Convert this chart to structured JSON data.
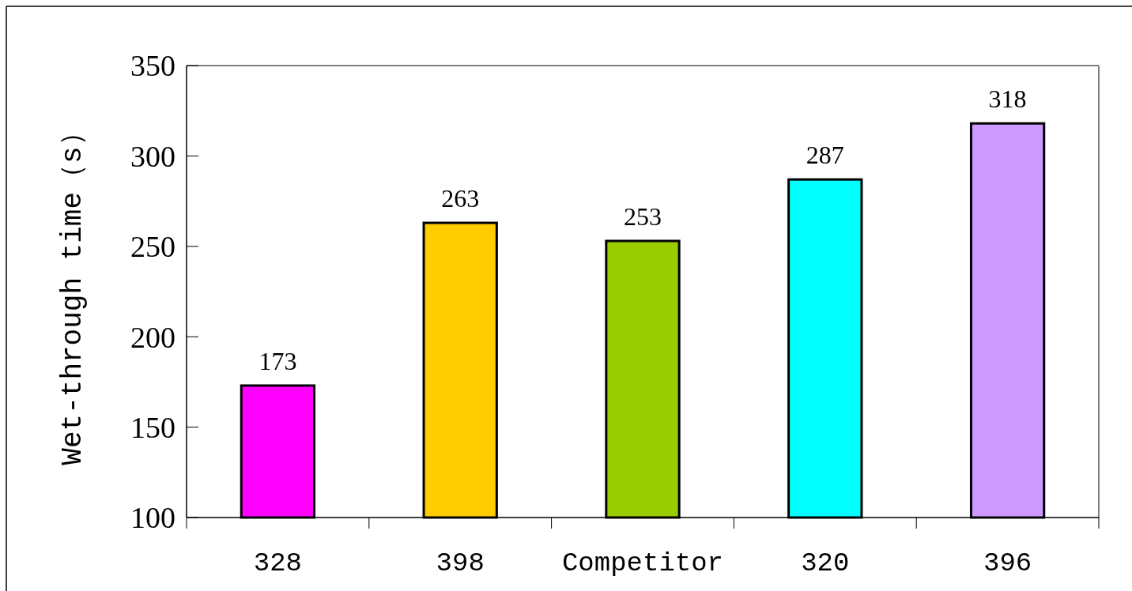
{
  "chart_data": {
    "type": "bar",
    "ylabel": "Wet-through time（s）",
    "categories": [
      "328",
      "398",
      "Competitor",
      "320",
      "396"
    ],
    "values": [
      173,
      263,
      253,
      287,
      318
    ],
    "colors": [
      "#ff00ff",
      "#ffcc00",
      "#99cc00",
      "#00ffff",
      "#cc99ff"
    ],
    "ylim": [
      100,
      350
    ],
    "yticks": [
      100,
      150,
      200,
      250,
      300,
      350
    ],
    "data_labels": true,
    "grid": false
  }
}
